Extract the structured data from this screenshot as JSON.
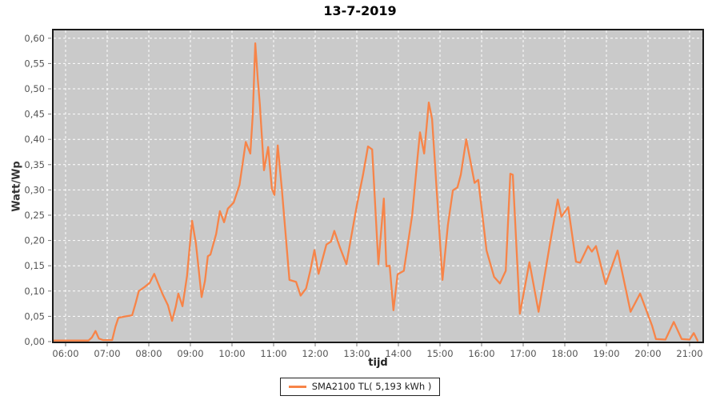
{
  "title": "13-7-2019",
  "colors": {
    "series": "#f78448",
    "plot_background": "#cacaca",
    "gridline": "#ffffff",
    "plot_border": "#1a1a1a",
    "tick": "#777777",
    "tick_label": "#555555",
    "outer_background": "#ffffff"
  },
  "legend": {
    "label": "SMA2100 TL( 5,193 kWh )"
  },
  "chart_data": {
    "type": "line",
    "title": "13-7-2019",
    "xlabel": "tijd",
    "ylabel": "Watt/Wp",
    "x_domain_hours": [
      5.69,
      21.32
    ],
    "ylim": [
      0,
      0.617
    ],
    "grid": "white dashed gridlines on gray plot background, hourly vertical and 0,05 horizontal",
    "legend_position": "bottom-center",
    "x_ticks": [
      "06:00",
      "07:00",
      "08:00",
      "09:00",
      "10:00",
      "11:00",
      "12:00",
      "13:00",
      "14:00",
      "15:00",
      "16:00",
      "17:00",
      "18:00",
      "19:00",
      "20:00",
      "21:00"
    ],
    "x_tick_hours": [
      6,
      7,
      8,
      9,
      10,
      11,
      12,
      13,
      14,
      15,
      16,
      17,
      18,
      19,
      20,
      21
    ],
    "y_ticks": [
      "0,00",
      "0,05",
      "0,10",
      "0,15",
      "0,20",
      "0,25",
      "0,30",
      "0,35",
      "0,40",
      "0,45",
      "0,50",
      "0,55",
      "0,60"
    ],
    "y_tick_values": [
      0,
      0.05,
      0.1,
      0.15,
      0.2,
      0.25,
      0.3,
      0.35,
      0.4,
      0.45,
      0.5,
      0.55,
      0.6
    ],
    "series": [
      {
        "name": "SMA2100 TL( 5,193 kWh )",
        "color": "#f78448",
        "points": [
          [
            5.7,
            0.002
          ],
          [
            6.1,
            0.002
          ],
          [
            6.55,
            0.002
          ],
          [
            6.63,
            0.008
          ],
          [
            6.72,
            0.021
          ],
          [
            6.8,
            0.006
          ],
          [
            6.9,
            0.003
          ],
          [
            7.12,
            0.003
          ],
          [
            7.2,
            0.03
          ],
          [
            7.27,
            0.047
          ],
          [
            7.45,
            0.05
          ],
          [
            7.6,
            0.052
          ],
          [
            7.69,
            0.078
          ],
          [
            7.76,
            0.1
          ],
          [
            7.9,
            0.108
          ],
          [
            8.02,
            0.116
          ],
          [
            8.13,
            0.134
          ],
          [
            8.25,
            0.11
          ],
          [
            8.33,
            0.094
          ],
          [
            8.46,
            0.072
          ],
          [
            8.56,
            0.041
          ],
          [
            8.65,
            0.07
          ],
          [
            8.71,
            0.095
          ],
          [
            8.81,
            0.07
          ],
          [
            8.92,
            0.13
          ],
          [
            9.04,
            0.239
          ],
          [
            9.13,
            0.195
          ],
          [
            9.19,
            0.15
          ],
          [
            9.27,
            0.088
          ],
          [
            9.35,
            0.12
          ],
          [
            9.42,
            0.169
          ],
          [
            9.48,
            0.172
          ],
          [
            9.62,
            0.213
          ],
          [
            9.71,
            0.258
          ],
          [
            9.81,
            0.236
          ],
          [
            9.9,
            0.263
          ],
          [
            10.04,
            0.275
          ],
          [
            10.18,
            0.31
          ],
          [
            10.33,
            0.395
          ],
          [
            10.44,
            0.372
          ],
          [
            10.5,
            0.45
          ],
          [
            10.56,
            0.59
          ],
          [
            10.62,
            0.52
          ],
          [
            10.67,
            0.469
          ],
          [
            10.77,
            0.339
          ],
          [
            10.87,
            0.385
          ],
          [
            10.96,
            0.302
          ],
          [
            11.02,
            0.29
          ],
          [
            11.1,
            0.388
          ],
          [
            11.2,
            0.3
          ],
          [
            11.38,
            0.122
          ],
          [
            11.54,
            0.118
          ],
          [
            11.65,
            0.091
          ],
          [
            11.78,
            0.105
          ],
          [
            11.88,
            0.14
          ],
          [
            11.98,
            0.181
          ],
          [
            12.08,
            0.134
          ],
          [
            12.27,
            0.192
          ],
          [
            12.38,
            0.198
          ],
          [
            12.46,
            0.219
          ],
          [
            12.6,
            0.185
          ],
          [
            12.75,
            0.153
          ],
          [
            12.85,
            0.2
          ],
          [
            13.0,
            0.269
          ],
          [
            13.15,
            0.33
          ],
          [
            13.27,
            0.386
          ],
          [
            13.37,
            0.38
          ],
          [
            13.52,
            0.153
          ],
          [
            13.65,
            0.283
          ],
          [
            13.71,
            0.149
          ],
          [
            13.79,
            0.15
          ],
          [
            13.88,
            0.062
          ],
          [
            13.98,
            0.133
          ],
          [
            14.13,
            0.14
          ],
          [
            14.33,
            0.25
          ],
          [
            14.46,
            0.364
          ],
          [
            14.52,
            0.414
          ],
          [
            14.62,
            0.372
          ],
          [
            14.73,
            0.473
          ],
          [
            14.81,
            0.44
          ],
          [
            14.96,
            0.25
          ],
          [
            15.06,
            0.122
          ],
          [
            15.19,
            0.231
          ],
          [
            15.31,
            0.299
          ],
          [
            15.42,
            0.305
          ],
          [
            15.5,
            0.33
          ],
          [
            15.63,
            0.4
          ],
          [
            15.83,
            0.314
          ],
          [
            15.92,
            0.32
          ],
          [
            16.12,
            0.18
          ],
          [
            16.3,
            0.128
          ],
          [
            16.44,
            0.115
          ],
          [
            16.58,
            0.14
          ],
          [
            16.69,
            0.332
          ],
          [
            16.75,
            0.33
          ],
          [
            16.92,
            0.055
          ],
          [
            17.15,
            0.157
          ],
          [
            17.37,
            0.059
          ],
          [
            17.65,
            0.197
          ],
          [
            17.83,
            0.281
          ],
          [
            17.92,
            0.247
          ],
          [
            18.08,
            0.266
          ],
          [
            18.27,
            0.158
          ],
          [
            18.37,
            0.156
          ],
          [
            18.56,
            0.189
          ],
          [
            18.65,
            0.178
          ],
          [
            18.75,
            0.189
          ],
          [
            18.98,
            0.114
          ],
          [
            19.27,
            0.18
          ],
          [
            19.58,
            0.059
          ],
          [
            19.81,
            0.095
          ],
          [
            20.1,
            0.031
          ],
          [
            20.19,
            0.005
          ],
          [
            20.42,
            0.004
          ],
          [
            20.62,
            0.039
          ],
          [
            20.81,
            0.005
          ],
          [
            21.0,
            0.004
          ],
          [
            21.1,
            0.017
          ],
          [
            21.19,
            0.002
          ]
        ]
      }
    ]
  }
}
